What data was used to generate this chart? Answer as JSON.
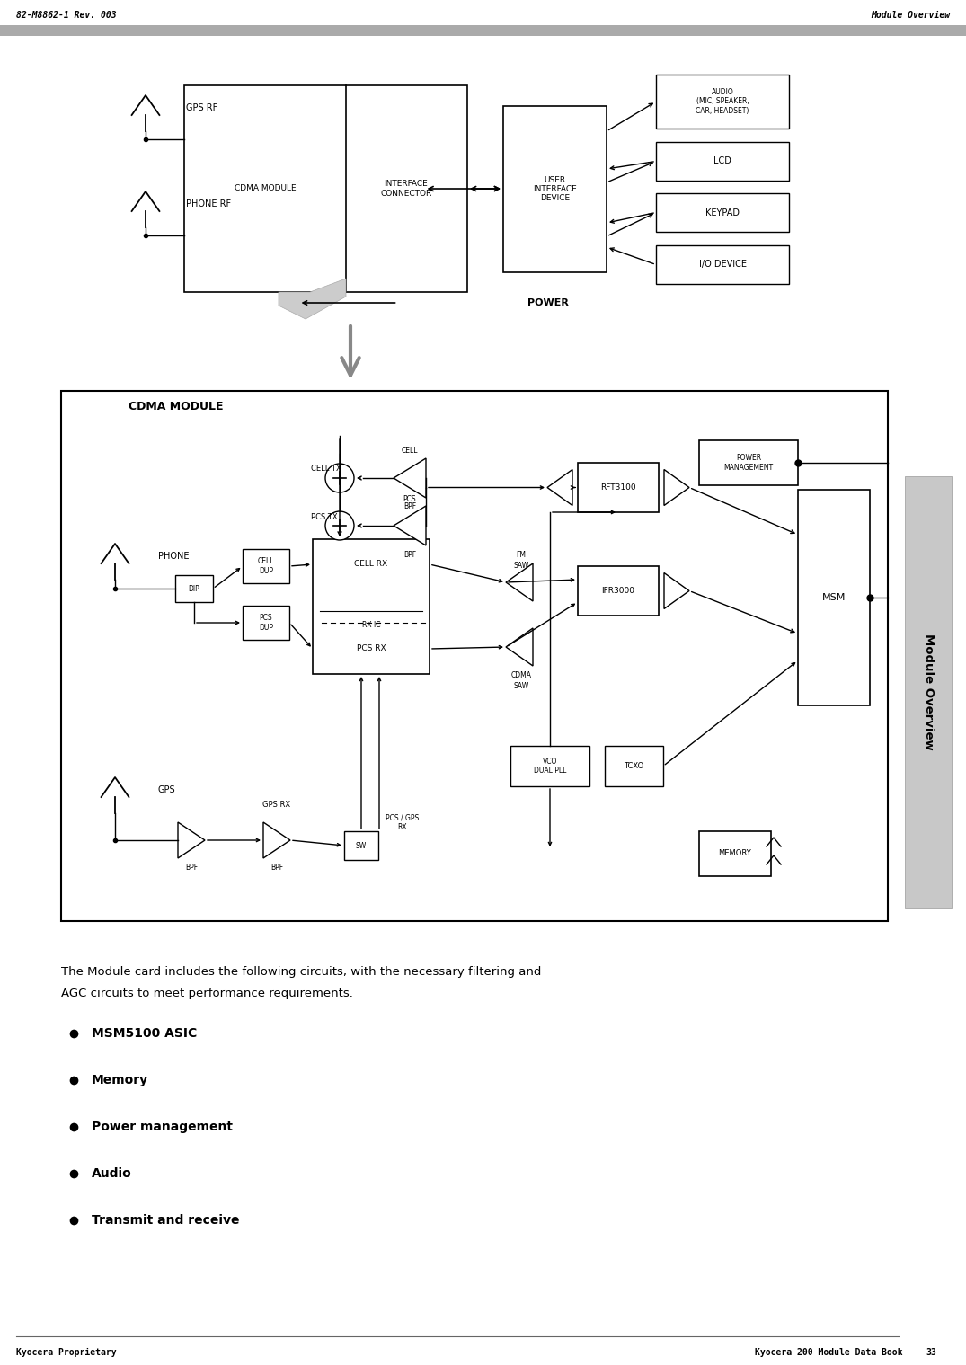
{
  "page_bg": "#ffffff",
  "header_left": "82-M8862-1 Rev. 003",
  "header_right": "Module Overview",
  "header_bar_color": "#aaaaaa",
  "footer_left": "Kyocera Proprietary",
  "footer_right": "Kyocera 200 Module Data Book",
  "footer_page": "33",
  "sidebar_text": "Module Overview",
  "body_intro_line1": "The Module card includes the following circuits, with the necessary filtering and",
  "body_intro_line2": "AGC circuits to meet performance requirements.",
  "bullet_items": [
    "MSM5100 ASIC",
    "Memory",
    "Power management",
    "Audio",
    "Transmit and receive"
  ]
}
